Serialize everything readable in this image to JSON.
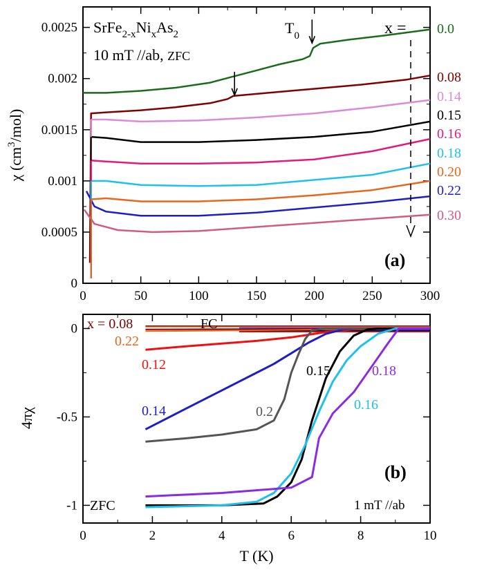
{
  "chart_data": [
    {
      "panel": "a",
      "type": "line",
      "panel_label": "(a)",
      "title_lines": {
        "formula": {
          "base1": "SrFe",
          "sub1": "2-x",
          "base2": "Ni",
          "sub2": "x",
          "base3": "As",
          "sub3": "2"
        },
        "field": "10 mT //ab,",
        "mode": "ZFC"
      },
      "x_label_text": "T (K)",
      "ylabel": {
        "pre": "χ (cm",
        "sup": "3",
        "post": "/mol)"
      },
      "x_ticks": [
        "0",
        "50",
        "100",
        "150",
        "200",
        "250",
        "300"
      ],
      "y_ticks": [
        "0",
        "0.0005",
        "0.001",
        "0.0015",
        "0.002",
        "0.0025"
      ],
      "xlim": [
        0,
        300
      ],
      "ylim": [
        0,
        0.0027
      ],
      "legend_title": "x =",
      "t0": {
        "base": "T",
        "sub": "0"
      },
      "arrows_at": [
        {
          "x": 131,
          "y": 0.00181
        },
        {
          "x": 198,
          "y": 0.00232
        }
      ],
      "series": [
        {
          "name": "0.0",
          "color": "#1a6b1a",
          "points": [
            [
              0,
              0.00186
            ],
            [
              20,
              0.00186
            ],
            [
              50,
              0.00188
            ],
            [
              80,
              0.00191
            ],
            [
              110,
              0.00196
            ],
            [
              130,
              0.00202
            ],
            [
              150,
              0.00208
            ],
            [
              170,
              0.00214
            ],
            [
              190,
              0.00219
            ],
            [
              196,
              0.00222
            ],
            [
              199,
              0.0023
            ],
            [
              205,
              0.00234
            ],
            [
              230,
              0.00238
            ],
            [
              260,
              0.00242
            ],
            [
              300,
              0.00248
            ]
          ]
        },
        {
          "name": "0.08",
          "color": "#800000",
          "points": [
            [
              6,
              0.0002
            ],
            [
              7,
              0.00166
            ],
            [
              20,
              0.00167
            ],
            [
              50,
              0.00169
            ],
            [
              80,
              0.00172
            ],
            [
              110,
              0.00176
            ],
            [
              125,
              0.0018
            ],
            [
              130,
              0.00183
            ],
            [
              160,
              0.00186
            ],
            [
              200,
              0.0019
            ],
            [
              240,
              0.00194
            ],
            [
              280,
              0.00199
            ],
            [
              300,
              0.00203
            ]
          ]
        },
        {
          "name": "0.14",
          "color": "#d98ad9",
          "points": [
            [
              7,
              0.0016
            ],
            [
              20,
              0.0016
            ],
            [
              50,
              0.00158
            ],
            [
              100,
              0.00159
            ],
            [
              150,
              0.00162
            ],
            [
              200,
              0.00166
            ],
            [
              250,
              0.00172
            ],
            [
              300,
              0.00179
            ]
          ]
        },
        {
          "name": "0.15",
          "color": "#000000",
          "points": [
            [
              7,
              0.00143
            ],
            [
              20,
              0.00142
            ],
            [
              50,
              0.00138
            ],
            [
              100,
              0.00138
            ],
            [
              150,
              0.0014
            ],
            [
              200,
              0.00143
            ],
            [
              250,
              0.00148
            ],
            [
              300,
              0.00158
            ]
          ]
        },
        {
          "name": "0.16",
          "color": "#e3197d",
          "points": [
            [
              7,
              0.0012
            ],
            [
              20,
              0.00119
            ],
            [
              50,
              0.00117
            ],
            [
              100,
              0.00117
            ],
            [
              150,
              0.00118
            ],
            [
              200,
              0.00121
            ],
            [
              250,
              0.00129
            ],
            [
              300,
              0.00141
            ]
          ]
        },
        {
          "name": "0.18",
          "color": "#1ec0ec",
          "points": [
            [
              7,
              0.001
            ],
            [
              20,
              0.001
            ],
            [
              50,
              0.00096
            ],
            [
              100,
              0.00095
            ],
            [
              150,
              0.00096
            ],
            [
              200,
              0.00101
            ],
            [
              250,
              0.00106
            ],
            [
              300,
              0.00117
            ]
          ]
        },
        {
          "name": "0.20",
          "color": "#e8661c",
          "points": [
            [
              7,
              0.00082
            ],
            [
              20,
              0.00083
            ],
            [
              50,
              0.0008
            ],
            [
              100,
              0.0008
            ],
            [
              150,
              0.00082
            ],
            [
              200,
              0.00086
            ],
            [
              250,
              0.00091
            ],
            [
              300,
              0.001
            ]
          ]
        },
        {
          "name": "0.22",
          "color": "#1e1ec8",
          "points": [
            [
              3,
              0.0009
            ],
            [
              10,
              0.00075
            ],
            [
              20,
              0.0007
            ],
            [
              50,
              0.00066
            ],
            [
              100,
              0.00066
            ],
            [
              150,
              0.00069
            ],
            [
              200,
              0.00074
            ],
            [
              250,
              0.00079
            ],
            [
              300,
              0.00085
            ]
          ]
        },
        {
          "name": "0.30",
          "color": "#d35a80",
          "points": [
            [
              1,
              0.00072
            ],
            [
              10,
              0.00058
            ],
            [
              30,
              0.00052
            ],
            [
              60,
              0.0005
            ],
            [
              100,
              0.00051
            ],
            [
              150,
              0.00055
            ],
            [
              200,
              0.00059
            ],
            [
              250,
              0.00063
            ],
            [
              300,
              0.00067
            ]
          ]
        }
      ]
    },
    {
      "panel": "b",
      "type": "line",
      "panel_label": "(b)",
      "xlabel": "T (K)",
      "ylabel": "4πχ",
      "x_ticks": [
        "0",
        "2",
        "4",
        "6",
        "8",
        "10"
      ],
      "y_ticks": [
        "0",
        "-0.5",
        "-1"
      ],
      "xlim": [
        0,
        10
      ],
      "ylim": [
        -1.1,
        0.08
      ],
      "fc_label": "FC",
      "zfc_label": "ZFC",
      "field_label": "1 mT //ab",
      "series": [
        {
          "name": "x = 0.08",
          "color": "#800000",
          "points": [
            [
              1.8,
              -0.005
            ],
            [
              5,
              -0.003
            ],
            [
              8,
              -0.001
            ],
            [
              10,
              0.0
            ]
          ]
        },
        {
          "name": "0.22",
          "color": "#e8661c",
          "points": [
            [
              1.8,
              -0.015
            ],
            [
              4,
              -0.012
            ],
            [
              6,
              -0.008
            ],
            [
              8,
              -0.003
            ],
            [
              10,
              0.0
            ]
          ]
        },
        {
          "name": "0.12",
          "color": "#ee1111",
          "points": [
            [
              1.8,
              -0.12
            ],
            [
              3,
              -0.1
            ],
            [
              4,
              -0.085
            ],
            [
              5,
              -0.07
            ],
            [
              6,
              -0.05
            ],
            [
              7,
              -0.02
            ],
            [
              7.8,
              -0.005
            ],
            [
              8.5,
              0.0
            ],
            [
              10,
              0.0
            ]
          ]
        },
        {
          "name": "0.14",
          "color": "#1e1ec8",
          "points": [
            [
              1.8,
              -0.57
            ],
            [
              3,
              -0.45
            ],
            [
              4,
              -0.35
            ],
            [
              5,
              -0.25
            ],
            [
              5.5,
              -0.2
            ],
            [
              6,
              -0.14
            ],
            [
              6.5,
              -0.08
            ],
            [
              7,
              -0.03
            ],
            [
              7.5,
              -0.005
            ],
            [
              8,
              0.0
            ],
            [
              10,
              0.0
            ]
          ]
        },
        {
          "name": "0.2",
          "color": "#555555",
          "points": [
            [
              1.8,
              -0.64
            ],
            [
              3,
              -0.62
            ],
            [
              4,
              -0.6
            ],
            [
              5,
              -0.57
            ],
            [
              5.5,
              -0.52
            ],
            [
              5.8,
              -0.4
            ],
            [
              6.0,
              -0.25
            ],
            [
              6.2,
              -0.15
            ],
            [
              6.4,
              -0.06
            ],
            [
              6.6,
              -0.01
            ],
            [
              7,
              0.0
            ],
            [
              10,
              0.0
            ]
          ]
        },
        {
          "name": "0.15",
          "color": "#000000",
          "points": [
            [
              1.8,
              -1.0
            ],
            [
              4,
              -1.0
            ],
            [
              5.2,
              -0.99
            ],
            [
              5.6,
              -0.95
            ],
            [
              6.0,
              -0.87
            ],
            [
              6.3,
              -0.74
            ],
            [
              6.6,
              -0.52
            ],
            [
              7.0,
              -0.28
            ],
            [
              7.4,
              -0.13
            ],
            [
              7.8,
              -0.04
            ],
            [
              8.2,
              -0.005
            ],
            [
              8.5,
              0.0
            ],
            [
              10,
              0.0
            ]
          ]
        },
        {
          "name": "0.16",
          "color": "#1ec0ec",
          "points": [
            [
              1.8,
              -1.01
            ],
            [
              4,
              -1.0
            ],
            [
              5.0,
              -0.98
            ],
            [
              5.5,
              -0.93
            ],
            [
              6.0,
              -0.82
            ],
            [
              6.4,
              -0.66
            ],
            [
              6.8,
              -0.47
            ],
            [
              7.2,
              -0.3
            ],
            [
              7.6,
              -0.18
            ],
            [
              8.0,
              -0.1
            ],
            [
              8.5,
              -0.03
            ],
            [
              9.0,
              0.0
            ],
            [
              10,
              0.0
            ]
          ]
        },
        {
          "name": "0.18",
          "color": "#8a2be2",
          "points": [
            [
              1.8,
              -0.95
            ],
            [
              4,
              -0.93
            ],
            [
              6.0,
              -0.9
            ],
            [
              6.6,
              -0.84
            ],
            [
              6.8,
              -0.62
            ],
            [
              7.2,
              -0.48
            ],
            [
              7.8,
              -0.36
            ],
            [
              8.3,
              -0.22
            ],
            [
              8.8,
              -0.08
            ],
            [
              9.1,
              0.0
            ],
            [
              10,
              0.0
            ]
          ]
        }
      ]
    }
  ]
}
